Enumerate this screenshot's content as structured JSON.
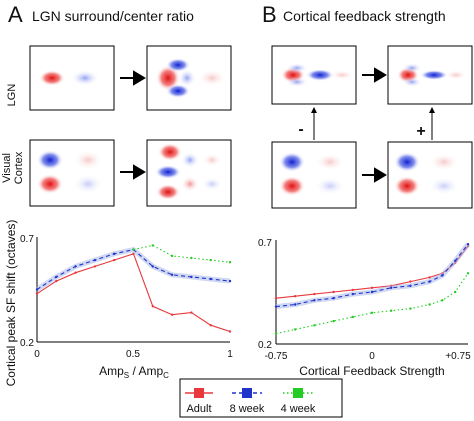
{
  "panels": {
    "a": {
      "letter": "A",
      "title": "LGN surround/center ratio"
    },
    "b": {
      "letter": "B",
      "title": "Cortical feedback strength",
      "minus_label": "-",
      "plus_label": "+"
    }
  },
  "row_labels": {
    "lgn": "LGN",
    "cortex_line1": "Visual",
    "cortex_line2": "Cortex"
  },
  "shared_ylabel": "Cortical peak SF shift (octaves)",
  "legend": [
    {
      "name": "Adult",
      "color": "#e8383d",
      "dash": "solid"
    },
    {
      "name": "8 week",
      "color": "#2233cc",
      "dash": "dashed"
    },
    {
      "name": "4 week",
      "color": "#22cc22",
      "dash": "dotted"
    }
  ],
  "chart_data": [
    {
      "type": "line",
      "xlabel": "Amp_S / Amp_C",
      "xlabel_parts": {
        "a": "Amp",
        "a_sub": "S",
        "sep": " / ",
        "b": "Amp",
        "b_sub": "C"
      },
      "ylabel": "Cortical peak SF shift (octaves)",
      "xlim": [
        0,
        1
      ],
      "ylim": [
        0.2,
        0.7
      ],
      "xticks": [
        "0",
        "0.5",
        "1"
      ],
      "yticks": [
        "0.2",
        "0.7"
      ],
      "series": [
        {
          "name": "Adult",
          "color": "#e8383d",
          "x": [
            0,
            0.1,
            0.2,
            0.3,
            0.4,
            0.5,
            0.6,
            0.7,
            0.8,
            0.9,
            1.0
          ],
          "y": [
            0.43,
            0.49,
            0.53,
            0.56,
            0.59,
            0.62,
            0.37,
            0.33,
            0.34,
            0.28,
            0.25
          ]
        },
        {
          "name": "8 week",
          "color": "#2233cc",
          "x": [
            0,
            0.1,
            0.2,
            0.3,
            0.4,
            0.5,
            0.6,
            0.7,
            0.8,
            0.9,
            1.0
          ],
          "y": [
            0.45,
            0.51,
            0.56,
            0.59,
            0.62,
            0.64,
            0.56,
            0.52,
            0.51,
            0.5,
            0.49
          ]
        },
        {
          "name": "4 week",
          "color": "#22cc22",
          "x": [
            0.5,
            0.6,
            0.7,
            0.8,
            0.9,
            1.0
          ],
          "y": [
            0.64,
            0.66,
            0.61,
            0.6,
            0.59,
            0.58
          ]
        }
      ]
    },
    {
      "type": "line",
      "xlabel": "Cortical Feedback Strength",
      "ylabel": "",
      "xlim": [
        -0.75,
        0.75
      ],
      "ylim": [
        0.2,
        0.7
      ],
      "xticks": [
        "-0.75",
        "0",
        "+0.75"
      ],
      "yticks": [
        "0.2",
        "0.7"
      ],
      "series": [
        {
          "name": "Adult",
          "color": "#e8383d",
          "x": [
            -0.75,
            -0.6,
            -0.45,
            -0.3,
            -0.15,
            0,
            0.15,
            0.3,
            0.45,
            0.55,
            0.65,
            0.75
          ],
          "y": [
            0.42,
            0.43,
            0.44,
            0.45,
            0.46,
            0.47,
            0.48,
            0.5,
            0.52,
            0.54,
            0.59,
            0.67
          ]
        },
        {
          "name": "8 week",
          "color": "#2233cc",
          "x": [
            -0.75,
            -0.6,
            -0.45,
            -0.3,
            -0.15,
            0,
            0.15,
            0.3,
            0.45,
            0.55,
            0.65,
            0.75
          ],
          "y": [
            0.38,
            0.39,
            0.41,
            0.42,
            0.44,
            0.45,
            0.47,
            0.48,
            0.5,
            0.53,
            0.6,
            0.68
          ]
        },
        {
          "name": "4 week",
          "color": "#22cc22",
          "x": [
            -0.75,
            -0.6,
            -0.45,
            -0.3,
            -0.15,
            0,
            0.15,
            0.3,
            0.45,
            0.55,
            0.65,
            0.75
          ],
          "y": [
            0.25,
            0.27,
            0.29,
            0.31,
            0.33,
            0.35,
            0.36,
            0.37,
            0.39,
            0.41,
            0.45,
            0.54
          ]
        }
      ]
    }
  ]
}
